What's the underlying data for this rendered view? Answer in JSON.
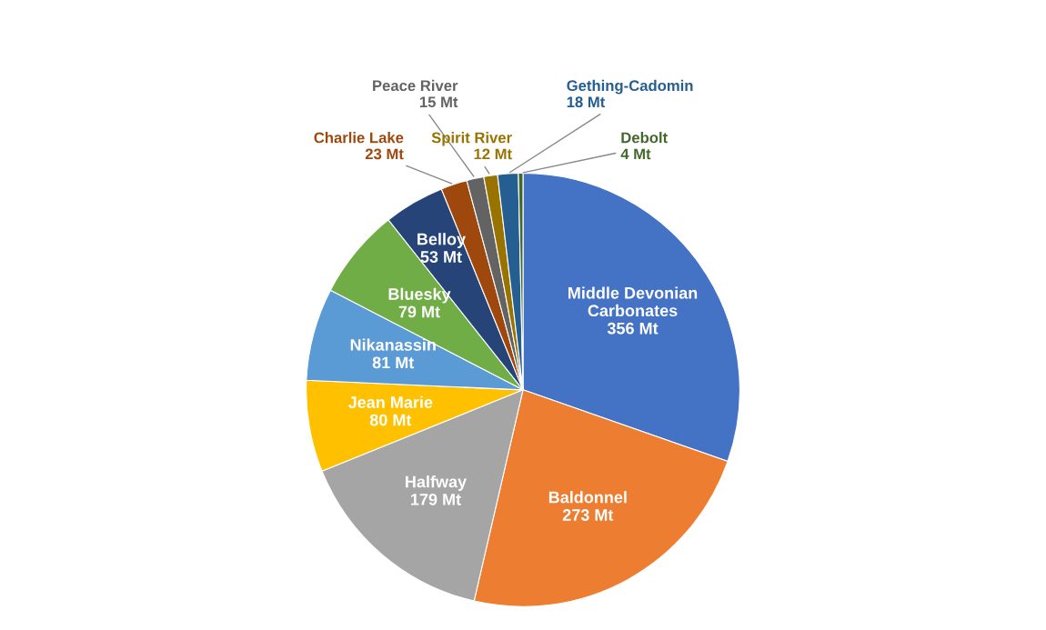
{
  "chart_data": {
    "type": "pie",
    "categories": [
      "Middle Devonian\nCarbonates",
      "Baldonnel",
      "Halfway",
      "Jean Marie",
      "Nikanassin",
      "Bluesky",
      "Belloy",
      "Charlie Lake",
      "Peace River",
      "Spirit River",
      "Gething-Cadomin",
      "Debolt"
    ],
    "values": [
      356,
      273,
      179,
      80,
      81,
      79,
      53,
      23,
      15,
      12,
      18,
      4
    ],
    "value_labels": [
      "356 Mt",
      "273 Mt",
      "179 Mt",
      "80 Mt",
      "81 Mt",
      "79 Mt",
      "53 Mt",
      "23 Mt",
      "15 Mt",
      "12 Mt",
      "18 Mt",
      "4 Mt"
    ],
    "colors": [
      "#4472c4",
      "#ed7d31",
      "#a5a5a5",
      "#ffc000",
      "#5b9bd5",
      "#70ad47",
      "#264478",
      "#9e480e",
      "#636363",
      "#997300",
      "#255e91",
      "#43682b"
    ],
    "legend": false
  }
}
